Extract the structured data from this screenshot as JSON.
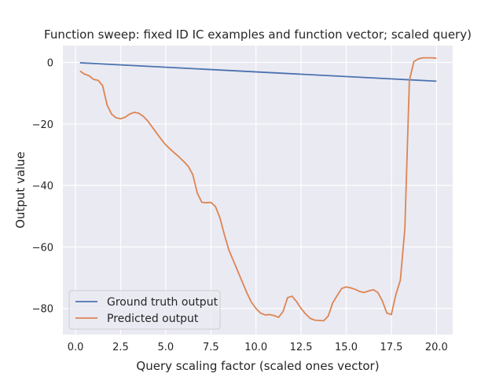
{
  "chart_data": {
    "type": "line",
    "title": "Function sweep: fixed ID IC examples and function vector; scaled query)",
    "xlabel": "Query scaling factor (scaled ones vector)",
    "ylabel": "Output value",
    "xlim": [
      -0.7,
      20.9
    ],
    "ylim": [
      -88.5,
      5.5
    ],
    "xticks": [
      0.0,
      2.5,
      5.0,
      7.5,
      10.0,
      12.5,
      15.0,
      17.5,
      20.0
    ],
    "xtick_labels": [
      "0.0",
      "2.5",
      "5.0",
      "7.5",
      "10.0",
      "12.5",
      "15.0",
      "17.5",
      "20.0"
    ],
    "yticks": [
      0,
      -20,
      -40,
      -60,
      -80
    ],
    "ytick_labels": [
      "0",
      "−20",
      "−40",
      "−60",
      "−80"
    ],
    "grid": true,
    "legend_position": "lower-left",
    "background": "#eaeaf2",
    "series": [
      {
        "name": "Ground truth output",
        "color": "#4c72b0",
        "x": [
          0.25,
          20.0
        ],
        "y": [
          -0.1,
          -6.1
        ]
      },
      {
        "name": "Predicted output",
        "color": "#dd8452",
        "x": [
          0.25,
          0.5,
          0.75,
          1.0,
          1.25,
          1.5,
          1.75,
          2.0,
          2.25,
          2.5,
          2.75,
          3.0,
          3.25,
          3.5,
          3.75,
          4.0,
          4.25,
          4.5,
          4.75,
          5.0,
          5.25,
          5.5,
          5.75,
          6.0,
          6.25,
          6.5,
          6.75,
          7.0,
          7.25,
          7.5,
          7.75,
          8.0,
          8.25,
          8.5,
          8.75,
          9.0,
          9.25,
          9.5,
          9.75,
          10.0,
          10.25,
          10.5,
          10.75,
          11.0,
          11.25,
          11.5,
          11.75,
          12.0,
          12.25,
          12.5,
          12.75,
          13.0,
          13.25,
          13.5,
          13.75,
          14.0,
          14.25,
          14.5,
          14.75,
          15.0,
          15.25,
          15.5,
          15.75,
          16.0,
          16.25,
          16.5,
          16.75,
          17.0,
          17.25,
          17.5,
          17.75,
          18.0,
          18.25,
          18.5,
          18.75,
          19.0,
          19.25,
          19.5,
          19.75,
          20.0
        ],
        "y": [
          -2.8,
          -3.8,
          -4.3,
          -5.5,
          -5.8,
          -7.5,
          -13.8,
          -16.8,
          -18.0,
          -18.3,
          -17.8,
          -16.8,
          -16.2,
          -16.5,
          -17.5,
          -19.0,
          -21.0,
          -23.0,
          -25.0,
          -26.8,
          -28.2,
          -29.5,
          -30.8,
          -32.2,
          -33.8,
          -36.5,
          -42.5,
          -45.5,
          -45.6,
          -45.5,
          -46.8,
          -50.5,
          -56.0,
          -61.0,
          -64.5,
          -68.0,
          -71.5,
          -75.0,
          -78.0,
          -80.0,
          -81.5,
          -82.1,
          -82.0,
          -82.3,
          -82.9,
          -81.0,
          -76.5,
          -76.0,
          -77.8,
          -80.0,
          -81.8,
          -83.2,
          -83.8,
          -83.9,
          -84.0,
          -82.5,
          -78.2,
          -75.8,
          -73.5,
          -73.0,
          -73.3,
          -73.8,
          -74.5,
          -74.8,
          -74.3,
          -73.9,
          -74.8,
          -77.5,
          -81.5,
          -82.0,
          -75.5,
          -70.8,
          -54.0,
          -5.8,
          0.3,
          1.2,
          1.5,
          1.5,
          1.5,
          1.4
        ]
      }
    ]
  }
}
